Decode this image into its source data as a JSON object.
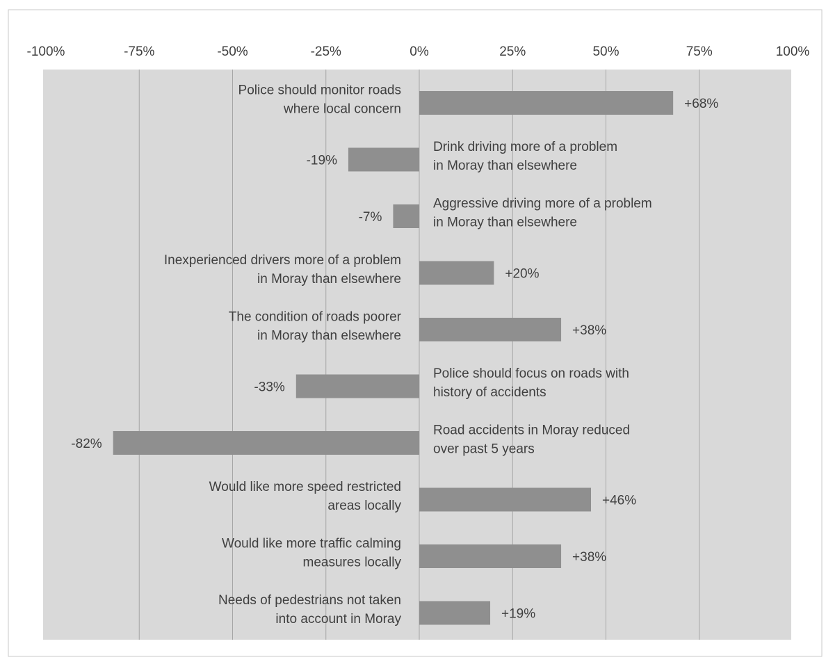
{
  "chart_data": {
    "type": "bar",
    "orientation": "horizontal",
    "title": "",
    "xlabel": "",
    "ylabel": "",
    "xlim": [
      -100,
      100
    ],
    "x_ticks": [
      -100,
      -75,
      -50,
      -25,
      0,
      25,
      50,
      75,
      100
    ],
    "x_tick_labels": [
      "-100%",
      "-75%",
      "-50%",
      "-25%",
      "0%",
      "25%",
      "50%",
      "75%",
      "100%"
    ],
    "x_axis_position": "top",
    "grid": true,
    "legend": "none",
    "categories": [
      [
        "Police should monitor roads",
        "where local concern"
      ],
      [
        "Drink driving more of a problem",
        "in Moray than elsewhere"
      ],
      [
        "Aggressive driving more of a problem",
        "in Moray than elsewhere"
      ],
      [
        "Inexperienced drivers more of a problem",
        "in Moray than elsewhere"
      ],
      [
        "The condition of roads poorer",
        "in Moray than elsewhere"
      ],
      [
        "Police should focus on roads with",
        "history of accidents"
      ],
      [
        "Road accidents in Moray reduced",
        "over past 5 years"
      ],
      [
        "Would like more speed restricted",
        "areas locally"
      ],
      [
        "Would like more traffic calming",
        "measures locally"
      ],
      [
        "Needs of pedestrians not taken",
        "into account in Moray"
      ]
    ],
    "values": [
      68,
      -19,
      -7,
      20,
      38,
      -33,
      -82,
      46,
      38,
      19
    ],
    "data_labels": [
      "+68%",
      "-19%",
      "-7%",
      "+20%",
      "+38%",
      "-33%",
      "-82%",
      "+46%",
      "+38%",
      "+19%"
    ],
    "colors": {
      "bar": "#8f8f8f",
      "plot_background": "#d9d9d9",
      "gridline": "#a6a6a6",
      "text": "#3f3f3f",
      "frame": "#c8c8c8"
    }
  }
}
